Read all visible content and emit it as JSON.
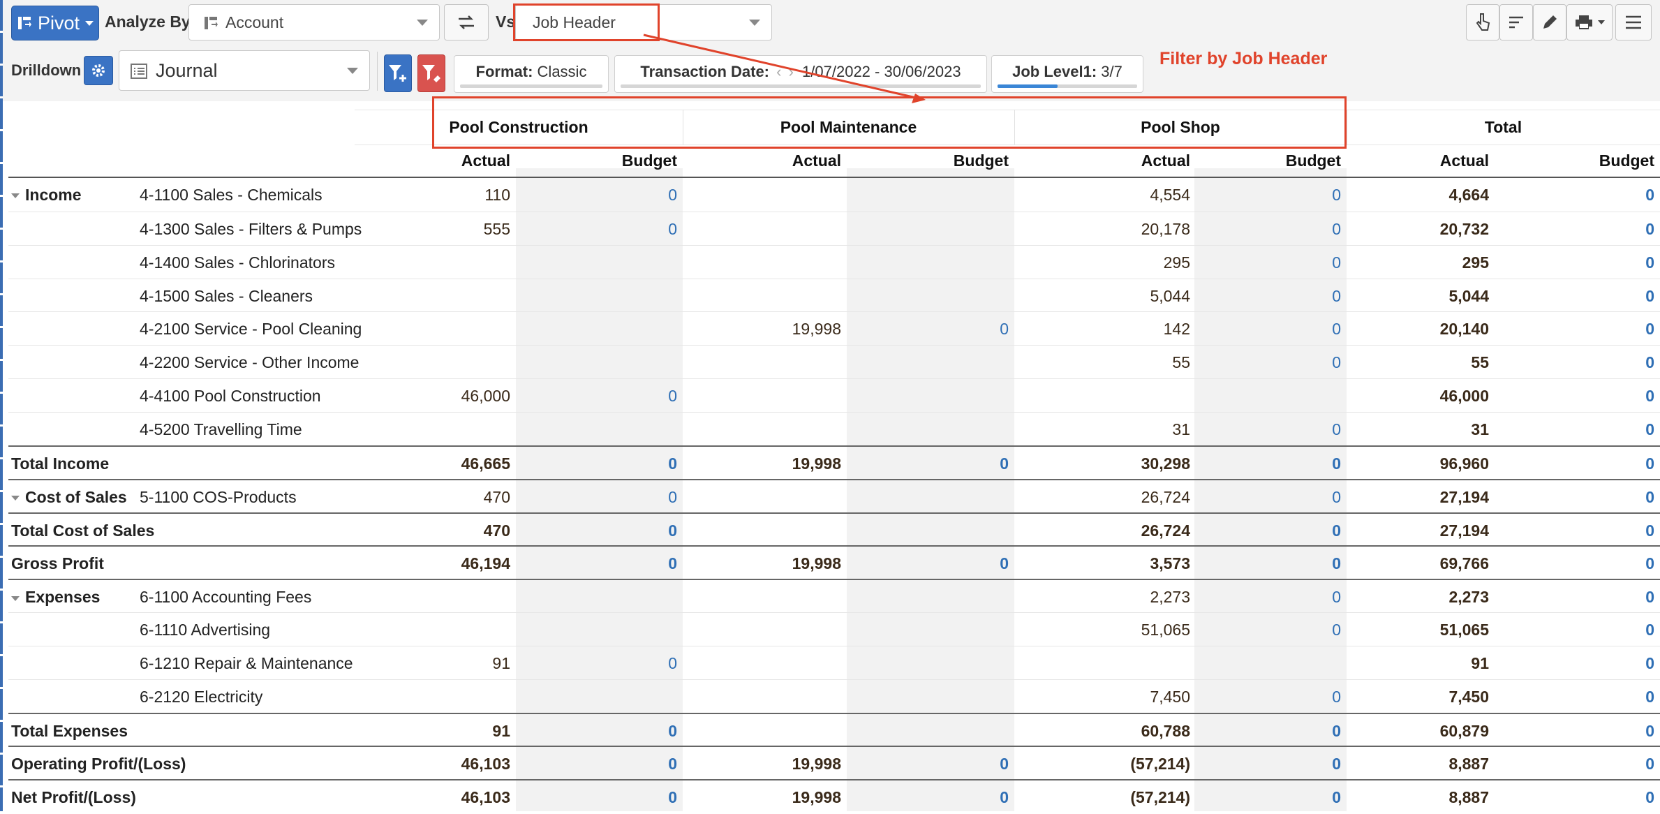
{
  "toolbar": {
    "pivot_label": "Pivot",
    "analyze_by_label": "Analyze By",
    "analyze_by_value": "Account",
    "vs_label": "Vs",
    "vs_value": "Job Header",
    "drilldown_label": "Drilldown",
    "drilldown_value": "Journal"
  },
  "filters": [
    {
      "key": "Format:",
      "value": "Classic",
      "progress": 0
    },
    {
      "key": "Transaction Date:",
      "value": "1/07/2022 - 30/06/2023",
      "progress": 0
    },
    {
      "key": "Job Level1:",
      "value": "3/7",
      "progress": 0.43
    }
  ],
  "annotation": "Filter by Job Header",
  "colors": {
    "accent": "#3a73c4",
    "budget_text": "#2f6fb5",
    "annotation": "#e0432b",
    "filter_clear": "#d9534f"
  },
  "columns": {
    "groups": [
      "Pool Construction",
      "Pool Maintenance",
      "Pool Shop",
      "Total"
    ],
    "actual_label": "Actual",
    "budget_label": "Budget"
  },
  "rows": [
    {
      "section": "Income",
      "account": "4-1100 Sales - Chemicals",
      "values": [
        "110",
        "0",
        "",
        "",
        "4,554",
        "0",
        "4,664",
        "0"
      ],
      "total": false
    },
    {
      "section": "",
      "account": "4-1300 Sales - Filters & Pumps",
      "values": [
        "555",
        "0",
        "",
        "",
        "20,178",
        "0",
        "20,732",
        "0"
      ],
      "total": false
    },
    {
      "section": "",
      "account": "4-1400 Sales - Chlorinators",
      "values": [
        "",
        "",
        "",
        "",
        "295",
        "0",
        "295",
        "0"
      ],
      "total": false
    },
    {
      "section": "",
      "account": "4-1500 Sales - Cleaners",
      "values": [
        "",
        "",
        "",
        "",
        "5,044",
        "0",
        "5,044",
        "0"
      ],
      "total": false
    },
    {
      "section": "",
      "account": "4-2100 Service - Pool Cleaning",
      "values": [
        "",
        "",
        "19,998",
        "0",
        "142",
        "0",
        "20,140",
        "0"
      ],
      "total": false
    },
    {
      "section": "",
      "account": "4-2200 Service - Other Income",
      "values": [
        "",
        "",
        "",
        "",
        "55",
        "0",
        "55",
        "0"
      ],
      "total": false
    },
    {
      "section": "",
      "account": "4-4100 Pool Construction",
      "values": [
        "46,000",
        "0",
        "",
        "",
        "",
        "",
        "46,000",
        "0"
      ],
      "total": false
    },
    {
      "section": "",
      "account": "4-5200 Travelling Time",
      "values": [
        "",
        "",
        "",
        "",
        "31",
        "0",
        "31",
        "0"
      ],
      "total": false
    },
    {
      "section": "Total Income",
      "account": "",
      "values": [
        "46,665",
        "0",
        "19,998",
        "0",
        "30,298",
        "0",
        "96,960",
        "0"
      ],
      "total": true
    },
    {
      "section": "Cost of Sales",
      "account": "5-1100 COS-Products",
      "values": [
        "470",
        "0",
        "",
        "",
        "26,724",
        "0",
        "27,194",
        "0"
      ],
      "total": false
    },
    {
      "section": "Total Cost of Sales",
      "account": "",
      "values": [
        "470",
        "0",
        "",
        "",
        "26,724",
        "0",
        "27,194",
        "0"
      ],
      "total": true
    },
    {
      "section": "Gross Profit",
      "account": "",
      "values": [
        "46,194",
        "0",
        "19,998",
        "0",
        "3,573",
        "0",
        "69,766",
        "0"
      ],
      "total": true
    },
    {
      "section": "Expenses",
      "account": "6-1100 Accounting Fees",
      "values": [
        "",
        "",
        "",
        "",
        "2,273",
        "0",
        "2,273",
        "0"
      ],
      "total": false
    },
    {
      "section": "",
      "account": "6-1110 Advertising",
      "values": [
        "",
        "",
        "",
        "",
        "51,065",
        "0",
        "51,065",
        "0"
      ],
      "total": false
    },
    {
      "section": "",
      "account": "6-1210 Repair & Maintenance",
      "values": [
        "91",
        "0",
        "",
        "",
        "",
        "",
        "91",
        "0"
      ],
      "total": false
    },
    {
      "section": "",
      "account": "6-2120 Electricity",
      "values": [
        "",
        "",
        "",
        "",
        "7,450",
        "0",
        "7,450",
        "0"
      ],
      "total": false
    },
    {
      "section": "Total Expenses",
      "account": "",
      "values": [
        "91",
        "0",
        "",
        "",
        "60,788",
        "0",
        "60,879",
        "0"
      ],
      "total": true
    },
    {
      "section": "Operating Profit/(Loss)",
      "account": "",
      "values": [
        "46,103",
        "0",
        "19,998",
        "0",
        "(57,214)",
        "0",
        "8,887",
        "0"
      ],
      "total": true
    },
    {
      "section": "Net Profit/(Loss)",
      "account": "",
      "values": [
        "46,103",
        "0",
        "19,998",
        "0",
        "(57,214)",
        "0",
        "8,887",
        "0"
      ],
      "total": true
    }
  ]
}
